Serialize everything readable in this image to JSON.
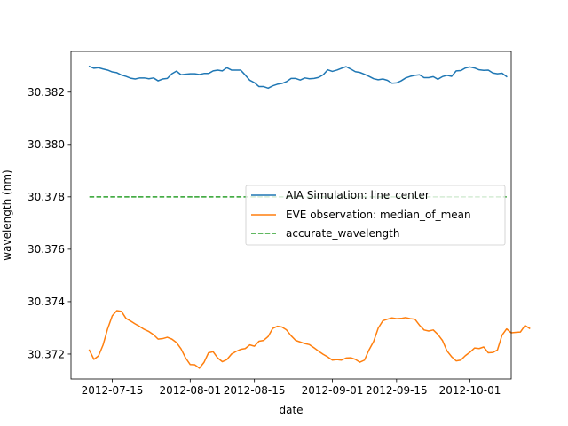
{
  "chart_data": {
    "type": "line",
    "title": "",
    "xlabel": "date",
    "ylabel": "wavelength (nm)",
    "x_start": "2012-07-10",
    "x_step_days": 1,
    "xlim": [
      "2012-07-06",
      "2012-10-10"
    ],
    "ylim": [
      30.37105,
      30.38355
    ],
    "xticks": [
      {
        "date": "2012-07-15",
        "label": "2012-07-15"
      },
      {
        "date": "2012-08-01",
        "label": "2012-08-01"
      },
      {
        "date": "2012-08-15",
        "label": "2012-08-15"
      },
      {
        "date": "2012-09-01",
        "label": "2012-09-01"
      },
      {
        "date": "2012-09-15",
        "label": "2012-09-15"
      },
      {
        "date": "2012-10-01",
        "label": "2012-10-01"
      }
    ],
    "yticks": [
      30.372,
      30.374,
      30.376,
      30.378,
      30.38,
      30.382
    ],
    "ytick_labels": [
      "30.372",
      "30.374",
      "30.376",
      "30.378",
      "30.380",
      "30.382"
    ],
    "grid": false,
    "legend_position": "center-right",
    "series": [
      {
        "name": "AIA Simulation: line_center",
        "color": "#1f77b4",
        "style": "solid",
        "values": [
          30.38298,
          30.38291,
          30.38293,
          30.38288,
          30.38284,
          30.38277,
          30.38274,
          30.38265,
          30.3826,
          30.38253,
          30.3825,
          30.38254,
          30.38254,
          30.38251,
          30.38254,
          30.38243,
          30.3825,
          30.38252,
          30.3827,
          30.3828,
          30.38266,
          30.38268,
          30.3827,
          30.3827,
          30.38267,
          30.38271,
          30.38271,
          30.38281,
          30.38284,
          30.38281,
          30.38293,
          30.38284,
          30.38284,
          30.38284,
          30.38265,
          30.38245,
          30.38236,
          30.38221,
          30.38221,
          30.38215,
          30.38224,
          30.3823,
          30.38233,
          30.3824,
          30.38252,
          30.38252,
          30.38246,
          30.38254,
          30.38251,
          30.38252,
          30.38256,
          30.38266,
          30.38285,
          30.38279,
          30.38284,
          30.38291,
          30.38297,
          30.38288,
          30.38278,
          30.38275,
          30.38268,
          30.3826,
          30.38251,
          30.38247,
          30.3825,
          30.38245,
          30.38234,
          30.38235,
          30.38243,
          30.38254,
          30.3826,
          30.38264,
          30.38266,
          30.38255,
          30.38255,
          30.38259,
          30.38249,
          30.38259,
          30.38264,
          30.3826,
          30.38281,
          30.38282,
          30.38292,
          30.38296,
          30.38292,
          30.38285,
          30.38283,
          30.38284,
          30.38273,
          30.3827,
          30.38272,
          30.38259
        ]
      },
      {
        "name": "EVE observation: median_of_mean",
        "color": "#ff7f0e",
        "style": "solid",
        "values": [
          30.37215,
          30.3718,
          30.37193,
          30.37235,
          30.37297,
          30.37346,
          30.37366,
          30.37363,
          30.37336,
          30.37326,
          30.37315,
          30.37305,
          30.37294,
          30.37286,
          30.37274,
          30.37257,
          30.37259,
          30.37264,
          30.37257,
          30.37244,
          30.3722,
          30.37185,
          30.3716,
          30.37159,
          30.37146,
          30.37168,
          30.37205,
          30.37209,
          30.37185,
          30.37171,
          30.37179,
          30.372,
          30.3721,
          30.37218,
          30.37221,
          30.37235,
          30.3723,
          30.37249,
          30.37252,
          30.37267,
          30.37298,
          30.37306,
          30.37303,
          30.37292,
          30.3727,
          30.37252,
          30.37246,
          30.3724,
          30.37236,
          30.37224,
          30.37211,
          30.37199,
          30.37189,
          30.37177,
          30.37179,
          30.37177,
          30.37185,
          30.37186,
          30.3718,
          30.37169,
          30.37177,
          30.37216,
          30.37248,
          30.37299,
          30.37327,
          30.37333,
          30.37338,
          30.37335,
          30.37336,
          30.37339,
          30.37335,
          30.37333,
          30.3731,
          30.37292,
          30.37288,
          30.37292,
          30.37275,
          30.37252,
          30.37212,
          30.3719,
          30.37174,
          30.37177,
          30.37194,
          30.37207,
          30.37223,
          30.37221,
          30.37227,
          30.37205,
          30.37206,
          30.37216,
          30.37272,
          30.37296,
          30.37281,
          30.37283,
          30.37284,
          30.37309,
          30.37298
        ]
      },
      {
        "name": "accurate_wavelength",
        "color": "#2ca02c",
        "style": "dashed",
        "values": [
          30.378,
          30.378
        ]
      }
    ]
  }
}
